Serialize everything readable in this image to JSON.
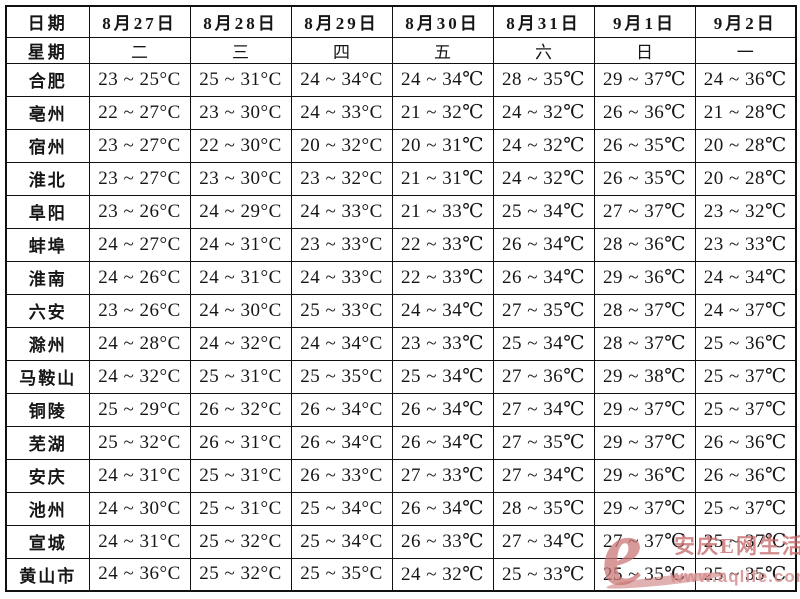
{
  "table": {
    "corner_date_label": "日期",
    "corner_week_label": "星期",
    "dates": [
      "8月27日",
      "8月28日",
      "8月29日",
      "8月30日",
      "8月31日",
      "9月1日",
      "9月2日"
    ],
    "weeks": [
      "二",
      "三",
      "四",
      "五",
      "六",
      "日",
      "一"
    ],
    "rows": [
      {
        "city": "合肥",
        "temps": [
          "23 ~ 25°C",
          "25 ~ 31°C",
          "24 ~ 34°C",
          "24 ~ 34℃",
          "28 ~ 35℃",
          "29 ~ 37℃",
          "24 ~ 36℃"
        ]
      },
      {
        "city": "亳州",
        "temps": [
          "22 ~ 27°C",
          "23 ~ 30°C",
          "24 ~ 33°C",
          "21 ~ 32℃",
          "24 ~ 32℃",
          "26 ~ 36℃",
          "21 ~ 28℃"
        ]
      },
      {
        "city": "宿州",
        "temps": [
          "23 ~ 27°C",
          "22 ~ 30°C",
          "20 ~ 32°C",
          "20 ~ 31℃",
          "24 ~ 32℃",
          "26 ~ 35℃",
          "20 ~ 28℃"
        ]
      },
      {
        "city": "淮北",
        "temps": [
          "23 ~ 27°C",
          "23 ~ 30°C",
          "23 ~ 32°C",
          "21 ~ 31℃",
          "24 ~ 32℃",
          "26 ~ 35℃",
          "20 ~ 28℃"
        ]
      },
      {
        "city": "阜阳",
        "temps": [
          "23 ~ 26°C",
          "24 ~ 29°C",
          "24 ~ 33°C",
          "21 ~ 33℃",
          "25 ~ 34℃",
          "27 ~ 37℃",
          "23 ~ 32℃"
        ]
      },
      {
        "city": "蚌埠",
        "temps": [
          "24 ~ 27°C",
          "24 ~ 31°C",
          "23 ~ 33°C",
          "22 ~ 33℃",
          "26 ~ 34℃",
          "28 ~ 36℃",
          "23 ~ 33℃"
        ]
      },
      {
        "city": "淮南",
        "temps": [
          "24 ~ 26°C",
          "24 ~ 31°C",
          "24 ~ 33°C",
          "22 ~ 33℃",
          "26 ~ 34℃",
          "29 ~ 36℃",
          "24 ~ 34℃"
        ]
      },
      {
        "city": "六安",
        "temps": [
          "23 ~ 26°C",
          "24 ~ 30°C",
          "25 ~ 33°C",
          "24 ~ 34℃",
          "27 ~ 35℃",
          "28 ~ 37℃",
          "24 ~ 37℃"
        ]
      },
      {
        "city": "滁州",
        "temps": [
          "24 ~ 28°C",
          "24 ~ 32°C",
          "24 ~ 34°C",
          "23 ~ 33℃",
          "25 ~ 34℃",
          "28 ~ 37℃",
          "25 ~ 36℃"
        ]
      },
      {
        "city": "马鞍山",
        "temps": [
          "24 ~ 32°C",
          "25 ~ 31°C",
          "25 ~ 35°C",
          "25 ~ 34℃",
          "27 ~ 36℃",
          "29 ~ 38℃",
          "25 ~ 37℃"
        ]
      },
      {
        "city": "铜陵",
        "temps": [
          "25 ~ 29°C",
          "26 ~ 32°C",
          "26 ~ 34°C",
          "26 ~ 34℃",
          "27 ~ 34℃",
          "29 ~ 37℃",
          "25 ~ 37℃"
        ]
      },
      {
        "city": "芜湖",
        "temps": [
          "25 ~ 32°C",
          "26 ~ 31°C",
          "26 ~ 34°C",
          "26 ~ 34℃",
          "27 ~ 35℃",
          "29 ~ 37℃",
          "26 ~ 36℃"
        ]
      },
      {
        "city": "安庆",
        "temps": [
          "24 ~ 31°C",
          "25 ~ 31°C",
          "26 ~ 33°C",
          "27 ~ 33℃",
          "27 ~ 34℃",
          "29 ~ 36℃",
          "26 ~ 36℃"
        ]
      },
      {
        "city": "池州",
        "temps": [
          "24 ~ 30°C",
          "25 ~ 31°C",
          "25 ~ 34°C",
          "26 ~ 34℃",
          "28 ~ 35℃",
          "29 ~ 37℃",
          "25 ~ 37℃"
        ]
      },
      {
        "city": "宣城",
        "temps": [
          "24 ~ 31°C",
          "25 ~ 32°C",
          "25 ~ 34°C",
          "26 ~ 33℃",
          "27 ~ 34℃",
          "27 ~ 37℃",
          "25 ~ 37℃"
        ]
      },
      {
        "city": "黄山市",
        "temps": [
          "24 ~ 36°C",
          "25 ~ 32°C",
          "25 ~ 35°C",
          "24 ~ 32℃",
          "25 ~ 33℃",
          "25 ~ 35℃",
          "25 ~ 35℃"
        ]
      }
    ]
  },
  "watermark": {
    "logo_letter": "e",
    "site_name": "安庆E网生活",
    "site_url": "www.aqlife.com",
    "color": "#c97171"
  }
}
